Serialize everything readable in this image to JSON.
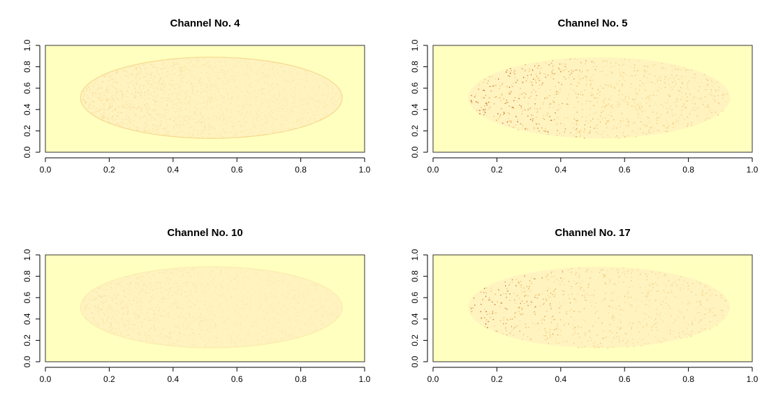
{
  "colors": {
    "background": "#FFFFC0",
    "low": "#FFF3C0",
    "mid": "#F2C46A",
    "high": "#B8520A",
    "frame": "#333333"
  },
  "chart_data": [
    {
      "type": "heatmap",
      "title": "Channel No. 4",
      "xlim": [
        0,
        1
      ],
      "ylim": [
        0,
        1
      ],
      "xticks": [
        "0.0",
        "0.2",
        "0.4",
        "0.6",
        "0.8",
        "1.0"
      ],
      "yticks": [
        "0.0",
        "0.2",
        "0.4",
        "0.6",
        "0.8",
        "1.0"
      ],
      "ellipse": {
        "cx": 0.52,
        "cy": 0.51,
        "rx": 0.41,
        "ry": 0.38
      },
      "speckle_density": 0.15,
      "speckle_intensity": 0.25,
      "rim_intensity": 0.45
    },
    {
      "type": "heatmap",
      "title": "Channel No. 5",
      "xlim": [
        0,
        1
      ],
      "ylim": [
        0,
        1
      ],
      "xticks": [
        "0.0",
        "0.2",
        "0.4",
        "0.6",
        "0.8",
        "1.0"
      ],
      "yticks": [
        "0.0",
        "0.2",
        "0.4",
        "0.6",
        "0.8",
        "1.0"
      ],
      "ellipse": {
        "cx": 0.52,
        "cy": 0.51,
        "rx": 0.41,
        "ry": 0.38
      },
      "speckle_density": 0.06,
      "speckle_intensity": 0.85,
      "rim_intensity": 0.0
    },
    {
      "type": "heatmap",
      "title": "Channel No. 10",
      "xlim": [
        0,
        1
      ],
      "ylim": [
        0,
        1
      ],
      "xticks": [
        "0.0",
        "0.2",
        "0.4",
        "0.6",
        "0.8",
        "1.0"
      ],
      "yticks": [
        "0.0",
        "0.2",
        "0.4",
        "0.6",
        "0.8",
        "1.0"
      ],
      "ellipse": {
        "cx": 0.52,
        "cy": 0.51,
        "rx": 0.41,
        "ry": 0.38
      },
      "speckle_density": 0.12,
      "speckle_intensity": 0.2,
      "rim_intensity": 0.15
    },
    {
      "type": "heatmap",
      "title": "Channel No. 17",
      "xlim": [
        0,
        1
      ],
      "ylim": [
        0,
        1
      ],
      "xticks": [
        "0.0",
        "0.2",
        "0.4",
        "0.6",
        "0.8",
        "1.0"
      ],
      "yticks": [
        "0.0",
        "0.2",
        "0.4",
        "0.6",
        "0.8",
        "1.0"
      ],
      "ellipse": {
        "cx": 0.52,
        "cy": 0.51,
        "rx": 0.41,
        "ry": 0.38
      },
      "speckle_density": 0.05,
      "speckle_intensity": 0.75,
      "rim_intensity": 0.0
    }
  ]
}
